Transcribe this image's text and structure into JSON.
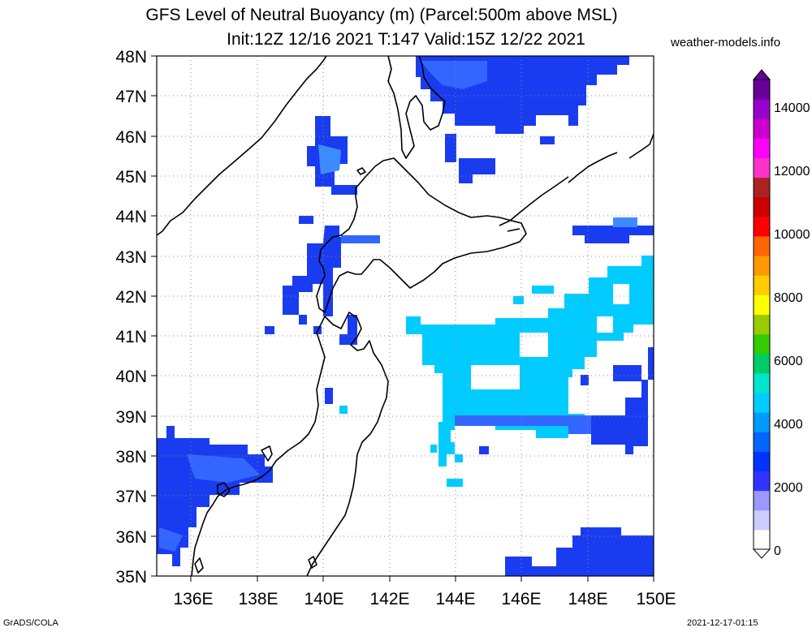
{
  "header": {
    "title_line1": "GFS Level of Neutral Buoyancy (m) (Parcel:500m above MSL)",
    "title_line2": "Init:12Z 12/16 2021 T:147 Valid:15Z 12/22 2021",
    "site": "weather-models.info"
  },
  "footer": {
    "credit": "GrADS/COLA",
    "timestamp": "2021-12-17-01:15"
  },
  "map": {
    "lat_labels": [
      "48N",
      "47N",
      "46N",
      "45N",
      "44N",
      "43N",
      "42N",
      "41N",
      "40N",
      "39N",
      "38N",
      "37N",
      "36N",
      "35N"
    ],
    "lon_labels": [
      "136E",
      "138E",
      "140E",
      "142E",
      "144E",
      "146E",
      "148E",
      "150E"
    ],
    "colors": {
      "coast": "#000000",
      "grid": "#888888"
    }
  },
  "colorbar": {
    "labels": [
      "14000",
      "12000",
      "10000",
      "8000",
      "6000",
      "4000",
      "2000",
      "0"
    ],
    "colors": [
      "#ffffff",
      "#ccccff",
      "#9999ff",
      "#3333ff",
      "#0033ff",
      "#0066ff",
      "#0099ff",
      "#00ccff",
      "#00e6cc",
      "#00cc66",
      "#33cc00",
      "#99cc00",
      "#ffff00",
      "#ffcc00",
      "#ff9900",
      "#ff6600",
      "#ff0000",
      "#cc0000",
      "#aa2222",
      "#ff33cc",
      "#ff00ff",
      "#cc00cc",
      "#9900cc",
      "#660099"
    ]
  }
}
